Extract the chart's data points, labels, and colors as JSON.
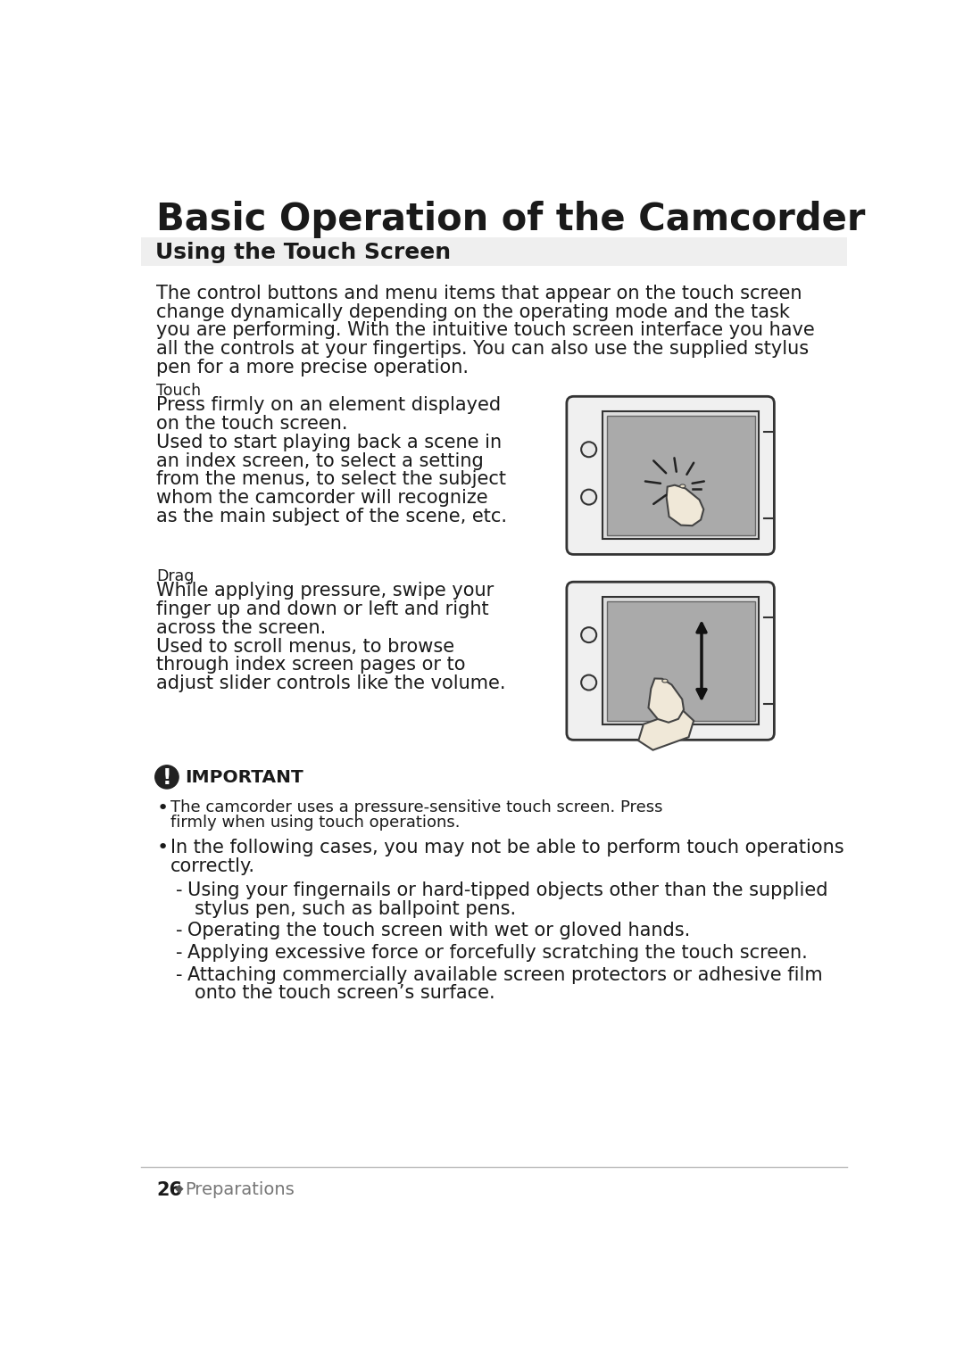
{
  "bg_color": "#ffffff",
  "main_title": "Basic Operation of the Camcorder",
  "section_title": "Using the Touch Screen",
  "section_bg": "#efefef",
  "intro_text": "The control buttons and menu items that appear on the touch screen\nchange dynamically depending on the operating mode and the task\nyou are performing. With the intuitive touch screen interface you have\nall the controls at your fingertips. You can also use the supplied stylus\npen for a more precise operation.",
  "touch_label": "Touch",
  "touch_text": "Press firmly on an element displayed\non the touch screen.\nUsed to start playing back a scene in\nan index screen, to select a setting\nfrom the menus, to select the subject\nwhom the camcorder will recognize\nas the main subject of the scene, etc.",
  "drag_label": "Drag",
  "drag_text": "While applying pressure, swipe your\nfinger up and down or left and right\nacross the screen.\nUsed to scroll menus, to browse\nthrough index screen pages or to\nadjust slider controls like the volume.",
  "important_title": "IMPORTANT",
  "bullet1_small": "The camcorder uses a pressure-sensitive touch screen. Press\nfirmly when using touch operations.",
  "bullet2": "In the following cases, you may not be able to perform touch operations\ncorrectly.",
  "sub_bullet1": "Using your fingernails or hard-tipped objects other than the supplied\nstylus pen, such as ballpoint pens.",
  "sub_bullet2": "Operating the touch screen with wet or gloved hands.",
  "sub_bullet3": "Applying excessive force or forcefully scratching the touch screen.",
  "sub_bullet4": "Attaching commercially available screen protectors or adhesive film\nonto the touch screen’s surface.",
  "footer_num": "26",
  "footer_bullet": "◆",
  "footer_text": "Preparations",
  "text_color": "#1a1a1a",
  "gray_color": "#888888",
  "device_body_color": "#f0f0f0",
  "device_border_color": "#333333",
  "screen_color": "#aaaaaa",
  "finger_color": "#f0e8d8",
  "finger_border": "#444444"
}
